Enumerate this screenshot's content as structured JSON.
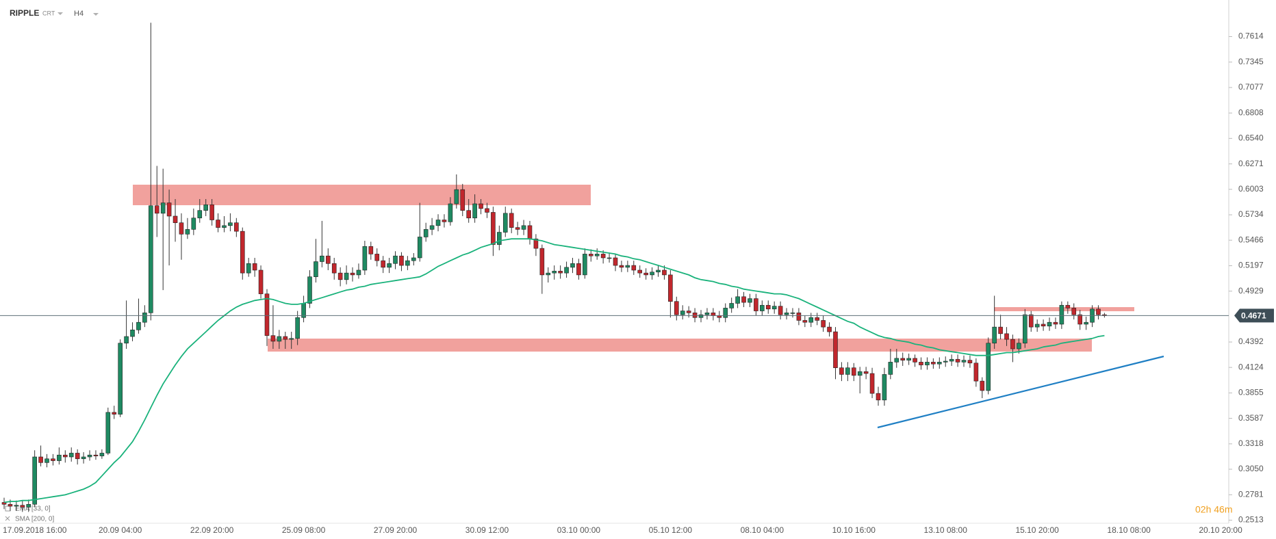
{
  "chart_data": {
    "type": "candlestick",
    "title": "RIPPLE",
    "symbol_type": "CRT",
    "interval": "H4",
    "up_color": "#1f8a62",
    "down_color": "#c1272d",
    "categories": [
      null,
      null,
      null,
      null,
      "17.09.2018 16:00",
      null,
      null,
      null,
      null,
      null,
      null,
      null,
      null,
      null,
      null,
      null,
      null,
      null,
      null,
      "20.09 04:00",
      null,
      null,
      null,
      null,
      null,
      null,
      null,
      null,
      null,
      null,
      null,
      null,
      null,
      null,
      "22.09 20:00",
      null,
      null,
      null,
      null,
      null,
      null,
      null,
      null,
      null,
      null,
      null,
      null,
      null,
      null,
      "25.09 08:00",
      null,
      null,
      null,
      null,
      null,
      null,
      null,
      null,
      null,
      null,
      null,
      null,
      null,
      null,
      "27.09 20:00",
      null,
      null,
      null,
      null,
      null,
      null,
      null,
      null,
      null,
      null,
      null,
      null,
      null,
      null,
      "30.09 12:00",
      null,
      null,
      null,
      null,
      null,
      null,
      null,
      null,
      null,
      null,
      null,
      null,
      null,
      null,
      "03.10 00:00",
      null,
      null,
      null,
      null,
      null,
      null,
      null,
      null,
      null,
      null,
      null,
      null,
      null,
      null,
      "05.10 12:00",
      null,
      null,
      null,
      null,
      null,
      null,
      null,
      null,
      null,
      null,
      null,
      null,
      null,
      null,
      "08.10 04:00",
      null,
      null,
      null,
      null,
      null,
      null,
      null,
      null,
      null,
      null,
      null,
      null,
      null,
      null,
      "10.10 16:00",
      null,
      null,
      null,
      null,
      null,
      null,
      null,
      null,
      null,
      null,
      null,
      null,
      null,
      null,
      "13.10 08:00",
      null,
      null,
      null,
      null,
      null,
      null,
      null,
      null,
      null,
      null,
      null,
      null,
      null,
      null,
      "15.10 20:00",
      null,
      null,
      null,
      null,
      null,
      null,
      null,
      null,
      null,
      null,
      null,
      null,
      null,
      null,
      "18.10 08:00",
      null,
      null,
      null,
      null,
      null,
      null,
      null,
      null,
      null,
      null,
      null,
      null,
      null,
      null,
      "20.10 20:00"
    ],
    "open": [
      0.27,
      0.268,
      0.266,
      0.267,
      0.265,
      0.268,
      0.318,
      0.312,
      0.316,
      0.314,
      0.32,
      0.318,
      0.322,
      0.316,
      0.318,
      0.32,
      0.319,
      0.322,
      0.365,
      0.363,
      0.438,
      0.445,
      0.452,
      0.46,
      0.47,
      0.583,
      0.575,
      0.586,
      0.572,
      0.565,
      0.553,
      0.558,
      0.57,
      0.578,
      0.584,
      0.568,
      0.56,
      0.562,
      0.565,
      0.556,
      0.512,
      0.522,
      0.515,
      0.49,
      0.446,
      0.44,
      0.445,
      0.442,
      0.443,
      0.465,
      0.48,
      0.508,
      0.524,
      0.53,
      0.522,
      0.512,
      0.505,
      0.512,
      0.51,
      0.515,
      0.54,
      0.532,
      0.525,
      0.518,
      0.522,
      0.53,
      0.52,
      0.525,
      0.528,
      0.55,
      0.558,
      0.562,
      0.568,
      0.566,
      0.585,
      0.6,
      0.578,
      0.57,
      0.585,
      0.58,
      0.576,
      0.542,
      0.555,
      0.575,
      0.56,
      0.558,
      0.562,
      0.548,
      0.538,
      0.51,
      0.512,
      0.514,
      0.512,
      0.518,
      0.522,
      0.51,
      0.532,
      0.53,
      0.532,
      0.528,
      0.528,
      0.52,
      0.518,
      0.52,
      0.515,
      0.512,
      0.51,
      0.513,
      0.515,
      0.51,
      0.482,
      0.468,
      0.472,
      0.47,
      0.465,
      0.468,
      0.47,
      0.467,
      0.465,
      0.475,
      0.48,
      0.487,
      0.481,
      0.485,
      0.472,
      0.478,
      0.474,
      0.477,
      0.468,
      0.47,
      0.47,
      0.462,
      0.46,
      0.465,
      0.462,
      0.455,
      0.45,
      0.412,
      0.405,
      0.412,
      0.404,
      0.408,
      0.406,
      0.385,
      0.378,
      0.405,
      0.418,
      0.422,
      0.42,
      0.422,
      0.418,
      0.415,
      0.418,
      0.416,
      0.418,
      0.419,
      0.421,
      0.418,
      0.42,
      0.417,
      0.398,
      0.388,
      0.438,
      0.455,
      0.448,
      0.442,
      0.432,
      0.438,
      0.468,
      0.455,
      0.458,
      0.456,
      0.46,
      0.458,
      0.478,
      0.475,
      0.468,
      0.458,
      0.46,
      0.474,
      0.468,
      null,
      null,
      null,
      null,
      null,
      null,
      null,
      null,
      null,
      null,
      null,
      null,
      null,
      null,
      null,
      null,
      null,
      null,
      null
    ],
    "high": [
      0.275,
      0.273,
      0.272,
      0.272,
      0.273,
      0.325,
      0.33,
      0.321,
      0.321,
      0.328,
      0.325,
      0.328,
      0.326,
      0.323,
      0.325,
      0.325,
      0.326,
      0.37,
      0.372,
      0.442,
      0.483,
      0.46,
      0.485,
      0.478,
      0.776,
      0.625,
      0.622,
      0.6,
      0.59,
      0.575,
      0.57,
      0.58,
      0.59,
      0.59,
      0.59,
      0.575,
      0.572,
      0.575,
      0.57,
      0.56,
      0.528,
      0.528,
      0.52,
      0.495,
      0.478,
      0.452,
      0.45,
      0.45,
      0.472,
      0.488,
      0.515,
      0.548,
      0.567,
      0.538,
      0.528,
      0.518,
      0.52,
      0.518,
      0.522,
      0.546,
      0.545,
      0.538,
      0.53,
      0.528,
      0.535,
      0.534,
      0.53,
      0.533,
      0.586,
      0.565,
      0.57,
      0.574,
      0.574,
      0.592,
      0.616,
      0.606,
      0.59,
      0.595,
      0.59,
      0.586,
      0.582,
      0.562,
      0.582,
      0.58,
      0.566,
      0.568,
      0.567,
      0.553,
      0.542,
      0.518,
      0.52,
      0.52,
      0.524,
      0.528,
      0.527,
      0.538,
      0.537,
      0.538,
      0.536,
      0.533,
      0.532,
      0.525,
      0.525,
      0.525,
      0.52,
      0.517,
      0.518,
      0.52,
      0.52,
      0.515,
      0.487,
      0.478,
      0.477,
      0.475,
      0.473,
      0.475,
      0.475,
      0.472,
      0.48,
      0.486,
      0.495,
      0.492,
      0.49,
      0.49,
      0.483,
      0.483,
      0.482,
      0.482,
      0.475,
      0.475,
      0.475,
      0.467,
      0.47,
      0.47,
      0.467,
      0.46,
      0.455,
      0.418,
      0.418,
      0.417,
      0.413,
      0.413,
      0.412,
      0.392,
      0.412,
      0.432,
      0.432,
      0.428,
      0.427,
      0.426,
      0.423,
      0.423,
      0.422,
      0.423,
      0.424,
      0.426,
      0.426,
      0.425,
      0.425,
      0.422,
      0.402,
      0.444,
      0.488,
      0.468,
      0.455,
      0.447,
      0.443,
      0.474,
      0.472,
      0.463,
      0.463,
      0.465,
      0.465,
      0.482,
      0.482,
      0.48,
      0.473,
      0.466,
      0.478,
      0.478,
      0.47,
      null,
      null,
      null,
      null,
      null,
      null,
      null,
      null,
      null,
      null,
      null,
      null,
      null,
      null,
      null,
      null,
      null,
      null,
      null
    ],
    "low": [
      0.263,
      0.261,
      0.261,
      0.26,
      0.26,
      0.265,
      0.308,
      0.307,
      0.309,
      0.31,
      0.312,
      0.313,
      0.31,
      0.311,
      0.314,
      0.315,
      0.316,
      0.32,
      0.358,
      0.36,
      0.432,
      0.44,
      0.448,
      0.455,
      0.462,
      0.55,
      0.494,
      0.52,
      0.545,
      0.526,
      0.548,
      0.552,
      0.565,
      0.572,
      0.562,
      0.555,
      0.555,
      0.556,
      0.55,
      0.505,
      0.508,
      0.508,
      0.485,
      0.435,
      0.432,
      0.432,
      0.432,
      0.432,
      0.436,
      0.46,
      0.475,
      0.502,
      0.518,
      0.515,
      0.505,
      0.498,
      0.5,
      0.503,
      0.506,
      0.51,
      0.526,
      0.519,
      0.512,
      0.512,
      0.516,
      0.514,
      0.515,
      0.52,
      0.524,
      0.545,
      0.552,
      0.556,
      0.56,
      0.562,
      0.58,
      0.572,
      0.565,
      0.565,
      0.574,
      0.57,
      0.53,
      0.536,
      0.55,
      0.554,
      0.552,
      0.552,
      0.542,
      0.53,
      0.49,
      0.502,
      0.505,
      0.506,
      0.507,
      0.512,
      0.505,
      0.506,
      0.524,
      0.526,
      0.522,
      0.523,
      0.514,
      0.513,
      0.513,
      0.51,
      0.507,
      0.505,
      0.505,
      0.508,
      0.505,
      0.465,
      0.462,
      0.463,
      0.465,
      0.46,
      0.46,
      0.463,
      0.462,
      0.46,
      0.46,
      0.47,
      0.475,
      0.476,
      0.476,
      0.467,
      0.467,
      0.469,
      0.469,
      0.463,
      0.463,
      0.465,
      0.457,
      0.455,
      0.455,
      0.457,
      0.45,
      0.445,
      0.4,
      0.398,
      0.398,
      0.398,
      0.385,
      0.4,
      0.38,
      0.372,
      0.372,
      0.4,
      0.412,
      0.414,
      0.415,
      0.413,
      0.41,
      0.41,
      0.411,
      0.411,
      0.413,
      0.414,
      0.413,
      0.413,
      0.412,
      0.392,
      0.38,
      0.384,
      0.432,
      0.442,
      0.435,
      0.418,
      0.427,
      0.433,
      0.45,
      0.45,
      0.451,
      0.451,
      0.453,
      0.453,
      0.469,
      0.463,
      0.452,
      0.452,
      0.455,
      0.463,
      0.465,
      null,
      null,
      null,
      null,
      null,
      null,
      null,
      null,
      null,
      null,
      null,
      null,
      null,
      null,
      null,
      null,
      null,
      null,
      null
    ],
    "close": [
      0.268,
      0.266,
      0.267,
      0.265,
      0.268,
      0.318,
      0.312,
      0.316,
      0.314,
      0.32,
      0.318,
      0.322,
      0.316,
      0.318,
      0.32,
      0.319,
      0.322,
      0.365,
      0.363,
      0.438,
      0.445,
      0.452,
      0.46,
      0.47,
      0.583,
      0.575,
      0.586,
      0.572,
      0.565,
      0.553,
      0.558,
      0.57,
      0.578,
      0.584,
      0.568,
      0.56,
      0.562,
      0.565,
      0.556,
      0.512,
      0.522,
      0.515,
      0.49,
      0.446,
      0.44,
      0.445,
      0.442,
      0.443,
      0.465,
      0.48,
      0.508,
      0.524,
      0.53,
      0.522,
      0.512,
      0.505,
      0.512,
      0.51,
      0.515,
      0.54,
      0.532,
      0.525,
      0.518,
      0.522,
      0.53,
      0.52,
      0.525,
      0.528,
      0.55,
      0.558,
      0.562,
      0.568,
      0.566,
      0.585,
      0.6,
      0.578,
      0.57,
      0.585,
      0.58,
      0.576,
      0.542,
      0.555,
      0.575,
      0.56,
      0.558,
      0.562,
      0.548,
      0.538,
      0.51,
      0.512,
      0.514,
      0.512,
      0.518,
      0.522,
      0.51,
      0.532,
      0.53,
      0.532,
      0.528,
      0.528,
      0.52,
      0.518,
      0.52,
      0.515,
      0.512,
      0.51,
      0.513,
      0.515,
      0.51,
      0.482,
      0.468,
      0.472,
      0.47,
      0.465,
      0.468,
      0.47,
      0.467,
      0.465,
      0.475,
      0.48,
      0.487,
      0.481,
      0.485,
      0.472,
      0.478,
      0.474,
      0.477,
      0.468,
      0.47,
      0.47,
      0.462,
      0.46,
      0.465,
      0.462,
      0.455,
      0.45,
      0.412,
      0.405,
      0.412,
      0.404,
      0.408,
      0.406,
      0.385,
      0.378,
      0.405,
      0.418,
      0.422,
      0.42,
      0.422,
      0.418,
      0.415,
      0.418,
      0.416,
      0.418,
      0.419,
      0.421,
      0.418,
      0.42,
      0.417,
      0.398,
      0.388,
      0.438,
      0.455,
      0.448,
      0.442,
      0.432,
      0.438,
      0.468,
      0.455,
      0.458,
      0.456,
      0.46,
      0.458,
      0.478,
      0.475,
      0.468,
      0.458,
      0.46,
      0.474,
      0.468,
      0.467,
      null,
      null,
      null,
      null,
      null,
      null,
      null,
      null,
      null,
      null,
      null,
      null,
      null,
      null,
      null,
      null,
      null,
      null,
      null
    ],
    "ema": {
      "name": "EMA [33, 0]",
      "color": "#19b27b",
      "values": [
        0.27,
        0.271,
        0.271,
        0.272,
        0.272,
        0.273,
        0.274,
        0.275,
        0.276,
        0.277,
        0.278,
        0.28,
        0.282,
        0.284,
        0.287,
        0.291,
        0.298,
        0.305,
        0.312,
        0.318,
        0.326,
        0.334,
        0.345,
        0.357,
        0.37,
        0.383,
        0.395,
        0.405,
        0.415,
        0.424,
        0.432,
        0.438,
        0.444,
        0.45,
        0.456,
        0.462,
        0.467,
        0.472,
        0.476,
        0.479,
        0.481,
        0.483,
        0.484,
        0.485,
        0.484,
        0.482,
        0.48,
        0.479,
        0.479,
        0.48,
        0.482,
        0.484,
        0.486,
        0.488,
        0.49,
        0.492,
        0.494,
        0.495,
        0.497,
        0.498,
        0.5,
        0.501,
        0.502,
        0.503,
        0.504,
        0.505,
        0.506,
        0.507,
        0.508,
        0.511,
        0.515,
        0.519,
        0.522,
        0.525,
        0.528,
        0.531,
        0.533,
        0.536,
        0.539,
        0.541,
        0.543,
        0.546,
        0.547,
        0.548,
        0.548,
        0.548,
        0.548,
        0.547,
        0.546,
        0.544,
        0.542,
        0.541,
        0.54,
        0.539,
        0.538,
        0.537,
        0.536,
        0.535,
        0.534,
        0.533,
        0.532,
        0.53,
        0.529,
        0.527,
        0.526,
        0.524,
        0.522,
        0.52,
        0.518,
        0.516,
        0.514,
        0.512,
        0.51,
        0.507,
        0.505,
        0.504,
        0.503,
        0.501,
        0.5,
        0.498,
        0.497,
        0.495,
        0.494,
        0.493,
        0.492,
        0.491,
        0.49,
        0.49,
        0.489,
        0.487,
        0.485,
        0.482,
        0.479,
        0.476,
        0.473,
        0.47,
        0.467,
        0.464,
        0.461,
        0.459,
        0.455,
        0.452,
        0.449,
        0.446,
        0.444,
        0.443,
        0.441,
        0.44,
        0.439,
        0.437,
        0.436,
        0.434,
        0.433,
        0.431,
        0.43,
        0.429,
        0.428,
        0.427,
        0.426,
        0.425,
        0.425,
        0.425,
        0.426,
        0.427,
        0.428,
        0.428,
        0.429,
        0.43,
        0.431,
        0.432,
        0.434,
        0.435,
        0.436,
        0.438,
        0.439,
        0.44,
        0.441,
        0.442,
        0.443,
        0.445,
        0.446,
        null,
        null,
        null,
        null,
        null,
        null,
        null,
        null,
        null,
        null,
        null,
        null,
        null,
        null,
        null,
        null,
        null,
        null,
        null
      ]
    },
    "sma": {
      "name": "SMA [200, 0]"
    },
    "ylim": [
      0.248,
      0.8
    ],
    "yticks": [
      0.2513,
      0.2781,
      {
        "value": 0.305,
        "label": "0.3050"
      },
      0.3318,
      0.3587,
      0.3855,
      0.4124,
      0.4392,
      0.4929,
      0.5197,
      0.5466,
      0.5734,
      0.6003,
      0.6271,
      {
        "value": 0.654,
        "label": "0.6540"
      },
      0.6808,
      0.7077,
      0.7345,
      0.7614
    ],
    "last_price": 0.4671,
    "countdown": "02h 46m"
  }
}
